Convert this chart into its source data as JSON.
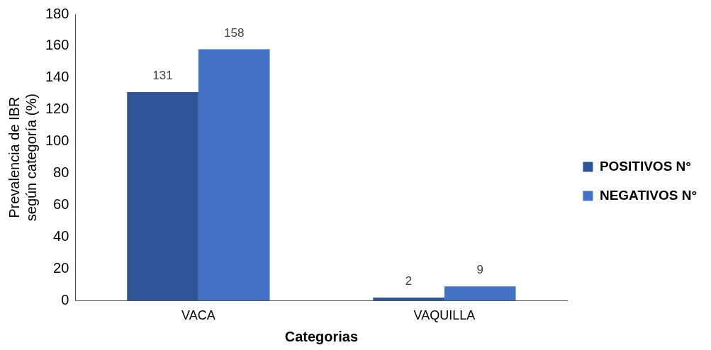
{
  "chart_data": {
    "type": "bar",
    "xlabel": "Categorias",
    "ylabel": "Prevalencia de IBR según categoría (%)",
    "categories": [
      "VACA",
      "VAQUILLA"
    ],
    "series": [
      {
        "name": "POSITIVOS N°",
        "color": "#2f5597",
        "values": [
          131,
          2
        ]
      },
      {
        "name": "NEGATIVOS N°",
        "color": "#4472c4",
        "values": [
          158,
          9
        ]
      }
    ],
    "ylim": [
      0,
      180
    ],
    "yticks": [
      0,
      20,
      40,
      60,
      80,
      100,
      120,
      140,
      160,
      180
    ],
    "grid": false,
    "legend": "right",
    "data_labels": true
  }
}
